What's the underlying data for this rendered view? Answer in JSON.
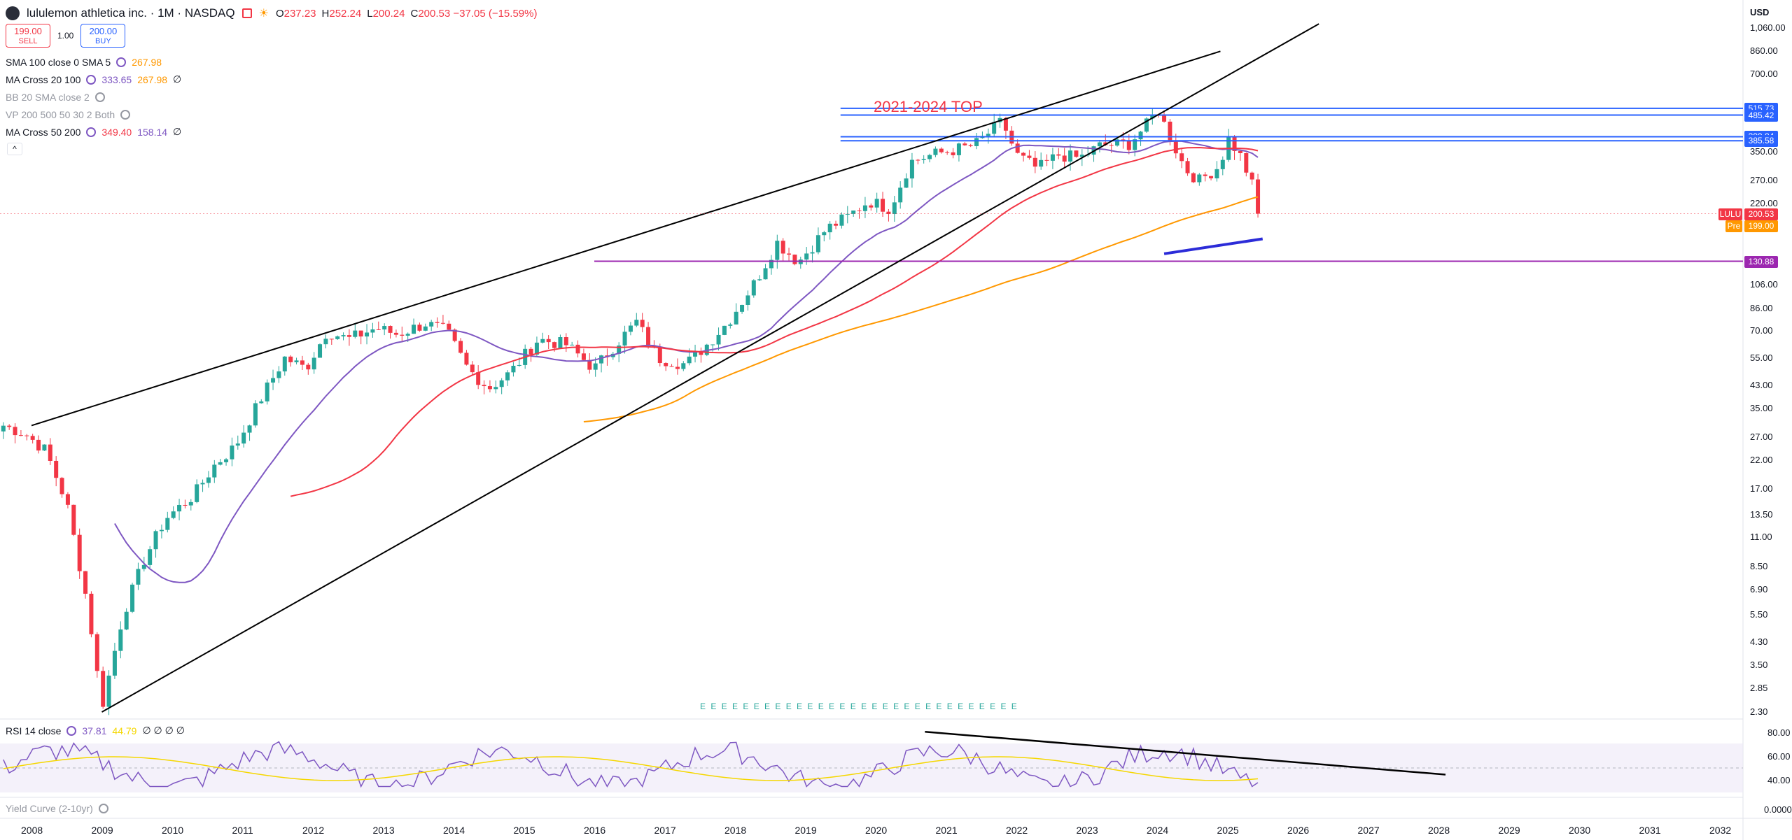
{
  "header": {
    "title": "lululemon athletica inc. · 1M · NASDAQ",
    "ohlc": [
      {
        "k": "O",
        "v": "237.23"
      },
      {
        "k": "H",
        "v": "252.24"
      },
      {
        "k": "L",
        "v": "200.24"
      },
      {
        "k": "C",
        "v": "200.53 −37.05 (−15.59%)"
      }
    ]
  },
  "trade": {
    "sell_price": "199.00",
    "sell_label": "SELL",
    "qty": "1.00",
    "buy_price": "200.00",
    "buy_label": "BUY"
  },
  "indicators": [
    {
      "name": "SMA 100 close 0 SMA 5",
      "v1": "267.98",
      "v2": "",
      "v3": "",
      "dim": false
    },
    {
      "name": "MA Cross 20 100",
      "v1": "333.65",
      "v2": "267.98",
      "v3": "∅",
      "dim": false
    },
    {
      "name": "BB 20 SMA close 2",
      "v1": "",
      "v2": "",
      "v3": "",
      "dim": true
    },
    {
      "name": "VP 200 500 50 30 2 Both",
      "v1": "",
      "v2": "",
      "v3": "",
      "dim": true
    },
    {
      "name": "MA Cross 50 200",
      "v1": "349.40",
      "v2": "158.14",
      "v3": "∅",
      "dim": false
    }
  ],
  "rsi_legend": {
    "name": "RSI 14 close",
    "v1": "37.81",
    "v2": "44.79",
    "v3": "∅ ∅ ∅ ∅"
  },
  "yield_legend": {
    "name": "Yield Curve (2-10yr)"
  },
  "currency": "USD",
  "colors": {
    "up": "#26a69a",
    "down": "#f23645",
    "sma20": "#7e57c2",
    "sma50": "#f23645",
    "sma100": "#ff9800",
    "hline": "#2962ff",
    "support": "#9c27b0",
    "annotation": "#f23645"
  },
  "chart_data": {
    "type": "candlestick",
    "symbol": "LULU",
    "interval": "1M",
    "scale": "log",
    "annotation": "2021-2024 TOP",
    "price_ticks": [
      "1,060.00",
      "860.00",
      "700.00",
      "350.00",
      "270.00",
      "220.00",
      "130.88",
      "106.00",
      "86.00",
      "70.00",
      "55.00",
      "43.00",
      "35.00",
      "27.00",
      "22.00",
      "17.00",
      "13.50",
      "11.00",
      "8.50",
      "6.90",
      "5.50",
      "4.30",
      "3.50",
      "2.85",
      "2.30"
    ],
    "price_tick_values": [
      1060,
      860,
      700,
      350,
      270,
      220,
      130.88,
      106,
      86,
      70,
      55,
      43,
      35,
      27,
      22,
      17,
      13.5,
      11,
      8.5,
      6.9,
      5.5,
      4.3,
      3.5,
      2.85,
      2.3
    ],
    "x_ticks": [
      "2008",
      "2009",
      "2010",
      "2011",
      "2012",
      "2013",
      "2014",
      "2015",
      "2016",
      "2017",
      "2018",
      "2019",
      "2020",
      "2021",
      "2022",
      "2023",
      "2024",
      "2025",
      "2026",
      "2027",
      "2028",
      "2029",
      "2030",
      "2031",
      "2032"
    ],
    "horizontal_levels": [
      {
        "price": 515.73,
        "label": "515.73"
      },
      {
        "price": 485.42,
        "label": "485.42"
      },
      {
        "price": 399.84,
        "label": "399.84"
      },
      {
        "price": 385.58,
        "label": "385.58"
      },
      {
        "price": 130.88,
        "label": "130.88"
      }
    ],
    "last_price": {
      "symbol": "LULU",
      "price": 200.53,
      "label": "200.53"
    },
    "pre_price": {
      "label": "Pre",
      "price": 199.0,
      "text": "199.00"
    },
    "ohlc_yearly_anchors": [
      [
        2007.6,
        30
      ],
      [
        2007.9,
        28
      ],
      [
        2008.2,
        24
      ],
      [
        2008.5,
        15
      ],
      [
        2008.8,
        6
      ],
      [
        2009.0,
        2.4
      ],
      [
        2009.3,
        5.5
      ],
      [
        2009.6,
        9
      ],
      [
        2009.9,
        13
      ],
      [
        2010.3,
        16
      ],
      [
        2010.6,
        21
      ],
      [
        2010.9,
        25
      ],
      [
        2011.3,
        40
      ],
      [
        2011.6,
        55
      ],
      [
        2011.9,
        50
      ],
      [
        2012.2,
        70
      ],
      [
        2012.5,
        65
      ],
      [
        2012.9,
        72
      ],
      [
        2013.2,
        68
      ],
      [
        2013.6,
        75
      ],
      [
        2013.9,
        70
      ],
      [
        2014.2,
        50
      ],
      [
        2014.5,
        42
      ],
      [
        2014.8,
        48
      ],
      [
        2015.2,
        65
      ],
      [
        2015.6,
        62
      ],
      [
        2016.0,
        50
      ],
      [
        2016.3,
        62
      ],
      [
        2016.6,
        76
      ],
      [
        2016.9,
        55
      ],
      [
        2017.3,
        52
      ],
      [
        2017.6,
        62
      ],
      [
        2017.9,
        76
      ],
      [
        2018.3,
        110
      ],
      [
        2018.6,
        155
      ],
      [
        2018.9,
        130
      ],
      [
        2019.3,
        175
      ],
      [
        2019.6,
        195
      ],
      [
        2019.9,
        225
      ],
      [
        2020.2,
        210
      ],
      [
        2020.5,
        320
      ],
      [
        2020.8,
        340
      ],
      [
        2021.0,
        350
      ],
      [
        2021.4,
        370
      ],
      [
        2021.8,
        460
      ],
      [
        2022.0,
        340
      ],
      [
        2022.3,
        300
      ],
      [
        2022.6,
        340
      ],
      [
        2022.9,
        330
      ],
      [
        2023.2,
        370
      ],
      [
        2023.6,
        375
      ],
      [
        2023.9,
        460
      ],
      [
        2024.0,
        515
      ],
      [
        2024.2,
        390
      ],
      [
        2024.4,
        300
      ],
      [
        2024.6,
        270
      ],
      [
        2024.9,
        310
      ],
      [
        2025.0,
        400
      ],
      [
        2025.2,
        330
      ],
      [
        2025.4,
        240
      ],
      [
        2025.5,
        200.53
      ]
    ],
    "rsi_ticks": [
      "80.00",
      "60.00",
      "40.00"
    ],
    "rsi_tick_values": [
      80,
      60,
      40
    ],
    "yield_tick": "0.0000",
    "events_row": "E E E E E E E E E E E E E E E E E E E E E E E E E E E E E E"
  }
}
